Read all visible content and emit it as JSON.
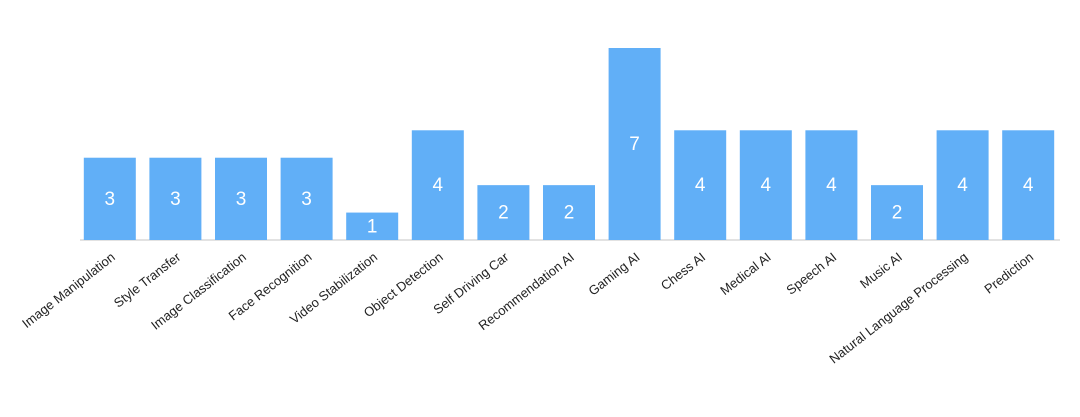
{
  "chart_data": {
    "type": "bar",
    "categories": [
      "Image Manipulation",
      "Style Transfer",
      "Image Classification",
      "Face Recognition",
      "Video Stabilization",
      "Object Detection",
      "Self Driving Car",
      "Recommendation AI",
      "Gaming AI",
      "Chess AI",
      "Medical AI",
      "Speech AI",
      "Music AI",
      "Natural Language Processing",
      "Prediction"
    ],
    "values": [
      3,
      3,
      3,
      3,
      1,
      4,
      2,
      2,
      7,
      4,
      4,
      4,
      2,
      4,
      4
    ],
    "color": "#61aff7",
    "ylim": [
      0,
      7
    ]
  }
}
